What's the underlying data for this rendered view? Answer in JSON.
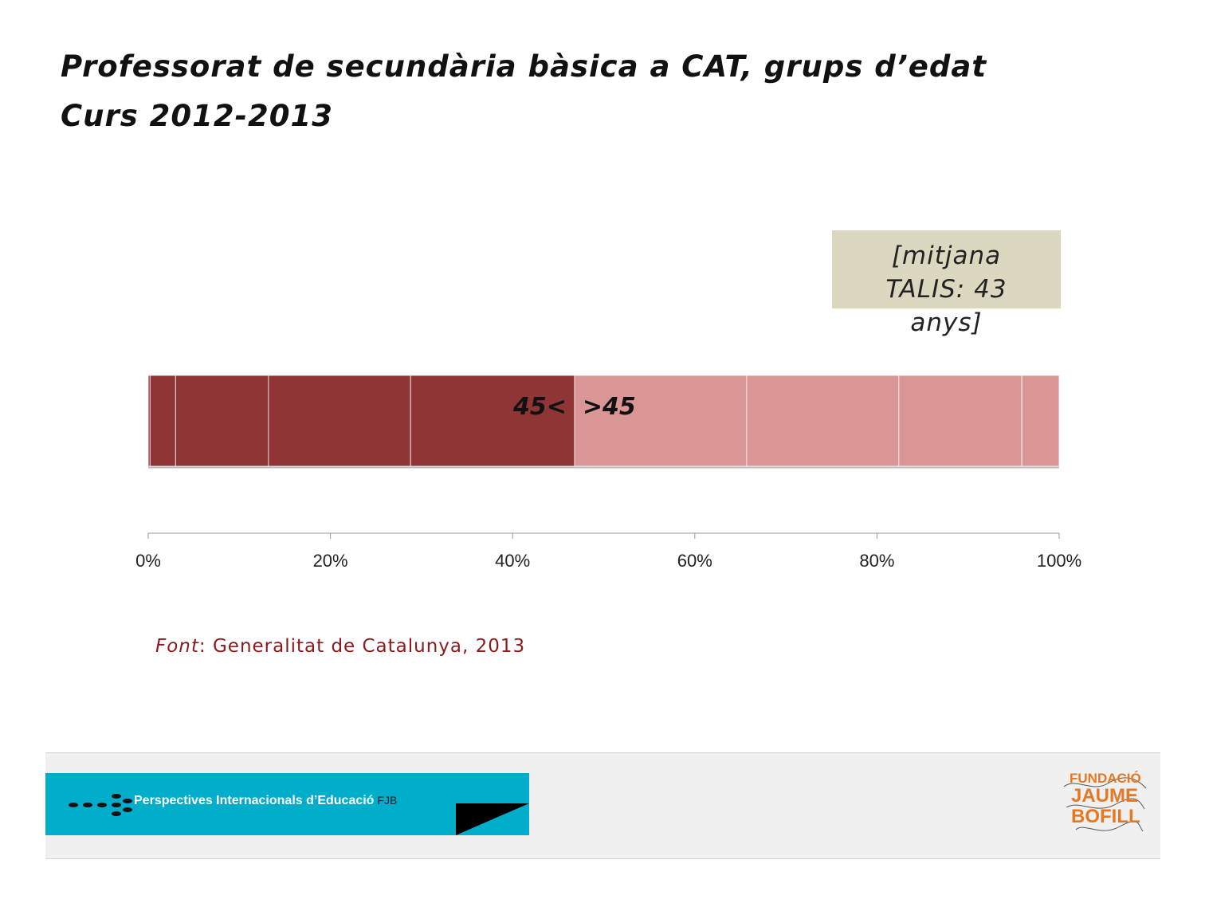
{
  "title": {
    "line1": "Professorat de secundària bàsica a CAT, grups d’edat",
    "line2": "Curs 2012-2013"
  },
  "annotation": {
    "talis_lines": [
      "[mitjana",
      "TALIS: 43",
      "anys]"
    ]
  },
  "chart_data": {
    "type": "bar",
    "orientation": "horizontal",
    "stacked": true,
    "percent_stacked": true,
    "xlim": [
      0,
      100
    ],
    "xticks": [
      "0%",
      "20%",
      "40%",
      "60%",
      "80%",
      "100%"
    ],
    "segments": [
      {
        "group": "45<",
        "value": 0.2,
        "color": "#8f3535"
      },
      {
        "group": "45<",
        "value": 2.8,
        "color": "#8f3535"
      },
      {
        "group": "45<",
        "value": 10.2,
        "color": "#8f3535"
      },
      {
        "group": "45<",
        "value": 15.6,
        "color": "#8f3535"
      },
      {
        "group": "45<",
        "value": 18.0,
        "color": "#8f3535"
      },
      {
        "group": ">45",
        "value": 18.9,
        "color": "#d99694"
      },
      {
        "group": ">45",
        "value": 16.7,
        "color": "#d99694"
      },
      {
        "group": ">45",
        "value": 13.5,
        "color": "#d99694"
      },
      {
        "group": ">45",
        "value": 4.1,
        "color": "#d99694"
      }
    ],
    "labels": [
      {
        "text": "45<",
        "at_value": 46.8,
        "align": "end"
      },
      {
        "text": ">45",
        "at_value": 46.8,
        "align": "start"
      }
    ]
  },
  "source": {
    "prefix": "Font",
    "text": ": Generalitat de Catalunya, 2013"
  },
  "footer": {
    "ribbon_title": "Perspectives Internacionals d’Educació",
    "ribbon_suffix": "FJB",
    "logo_lines": [
      "FUNDACIÓ",
      "JAUME",
      "BOFILL"
    ],
    "accent_color": "#00aecb",
    "logo_color": "#e87722"
  }
}
